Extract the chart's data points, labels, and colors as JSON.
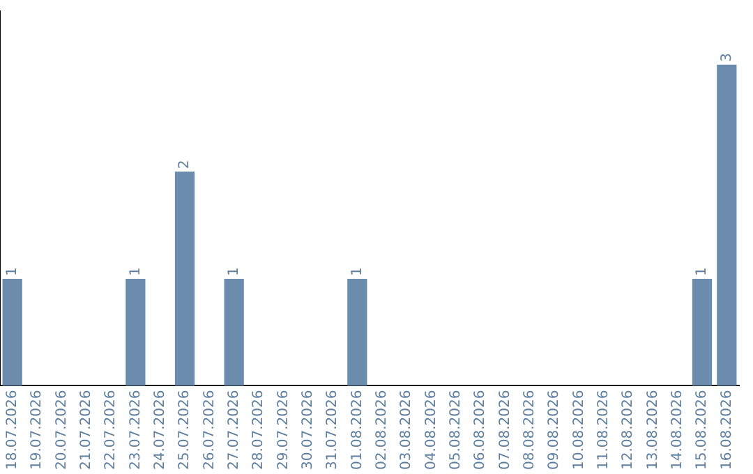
{
  "chart_data": {
    "type": "bar",
    "categories": [
      "18.07.2026",
      "19.07.2026",
      "20.07.2026",
      "21.07.2026",
      "22.07.2026",
      "23.07.2026",
      "24.07.2026",
      "25.07.2026",
      "26.07.2026",
      "27.07.2026",
      "28.07.2026",
      "29.07.2026",
      "30.07.2026",
      "31.07.2026",
      "01.08.2026",
      "02.08.2026",
      "03.08.2026",
      "04.08.2026",
      "05.08.2026",
      "06.08.2026",
      "07.08.2026",
      "08.08.2026",
      "09.08.2026",
      "10.08.2026",
      "11.08.2026",
      "12.08.2026",
      "13.08.2026",
      "14.08.2026",
      "15.08.2026",
      "16.08.2026"
    ],
    "values": [
      1,
      0,
      0,
      0,
      0,
      1,
      0,
      2,
      0,
      1,
      0,
      0,
      0,
      0,
      1,
      0,
      0,
      0,
      0,
      0,
      0,
      0,
      0,
      0,
      0,
      0,
      0,
      0,
      1,
      3
    ],
    "value_labels": [
      "1",
      null,
      null,
      null,
      null,
      "1",
      null,
      "2",
      null,
      "1",
      null,
      null,
      null,
      null,
      "1",
      null,
      null,
      null,
      null,
      null,
      null,
      null,
      null,
      null,
      null,
      null,
      null,
      null,
      "1",
      "3"
    ],
    "color": "#6b8cac",
    "grid": false,
    "legend": false,
    "tick_labels": "x"
  }
}
